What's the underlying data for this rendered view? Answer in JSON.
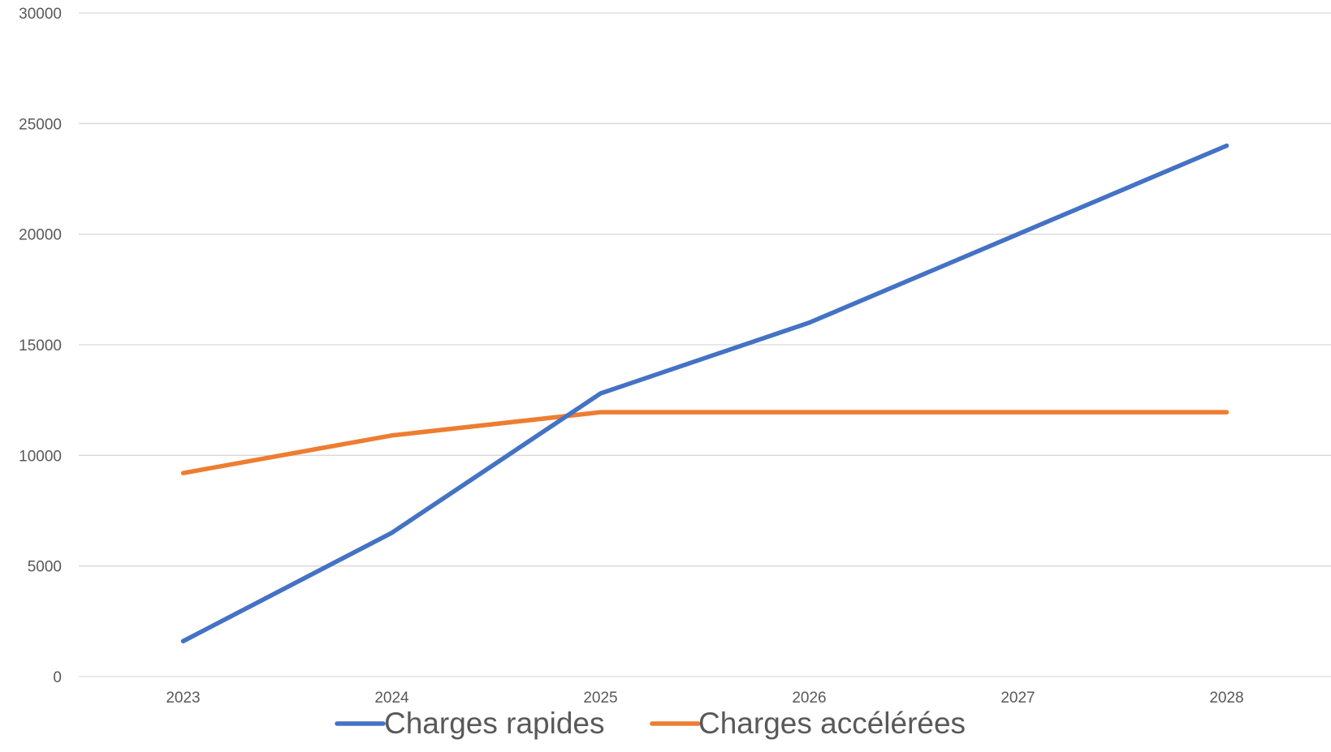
{
  "chart_data": {
    "type": "line",
    "title": "",
    "xlabel": "",
    "ylabel": "",
    "categories": [
      "2023",
      "2024",
      "2025",
      "2026",
      "2027",
      "2028"
    ],
    "ylim": [
      0,
      30000
    ],
    "y_ticks": [
      "0",
      "5000",
      "10000",
      "15000",
      "20000",
      "25000",
      "30000"
    ],
    "grid": true,
    "legend_position": "bottom",
    "series": [
      {
        "name": "Charges rapides",
        "color": "#4472C4",
        "values": [
          1600,
          6500,
          12800,
          16000,
          20000,
          24000
        ]
      },
      {
        "name": "Charges accélérées",
        "color": "#ED7D31",
        "values": [
          9200,
          10900,
          11950,
          11950,
          11950,
          11950
        ]
      }
    ]
  }
}
